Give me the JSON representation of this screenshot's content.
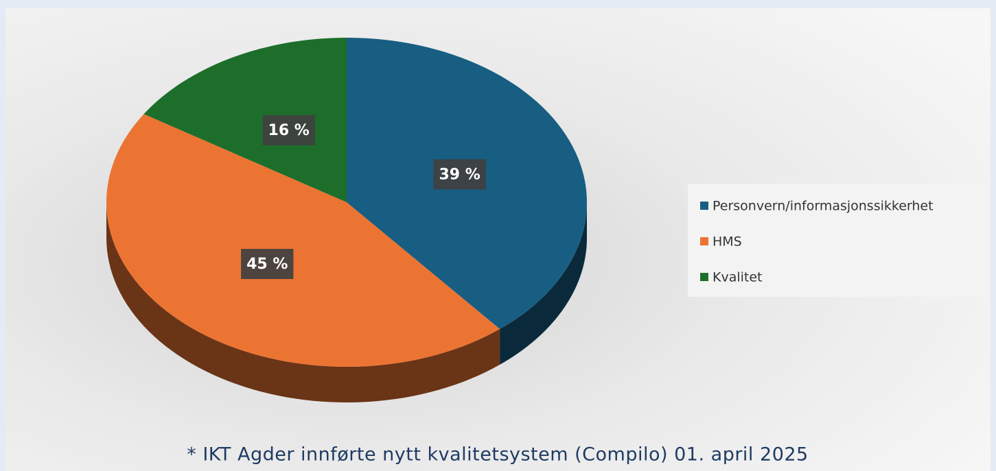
{
  "chart_data": {
    "type": "pie",
    "categories": [
      "Personvern/informasjonssikkerhet",
      "HMS",
      "Kvalitet"
    ],
    "values": [
      39,
      45,
      16
    ],
    "value_labels": [
      "39 %",
      "45 %",
      "16 %"
    ],
    "colors": [
      "#175e82",
      "#ec7432",
      "#1d6e2b"
    ],
    "legend": "right",
    "annotation": "* IKT Agder innførte nytt kvalitetsystem (Compilo) 01. april 2025"
  }
}
